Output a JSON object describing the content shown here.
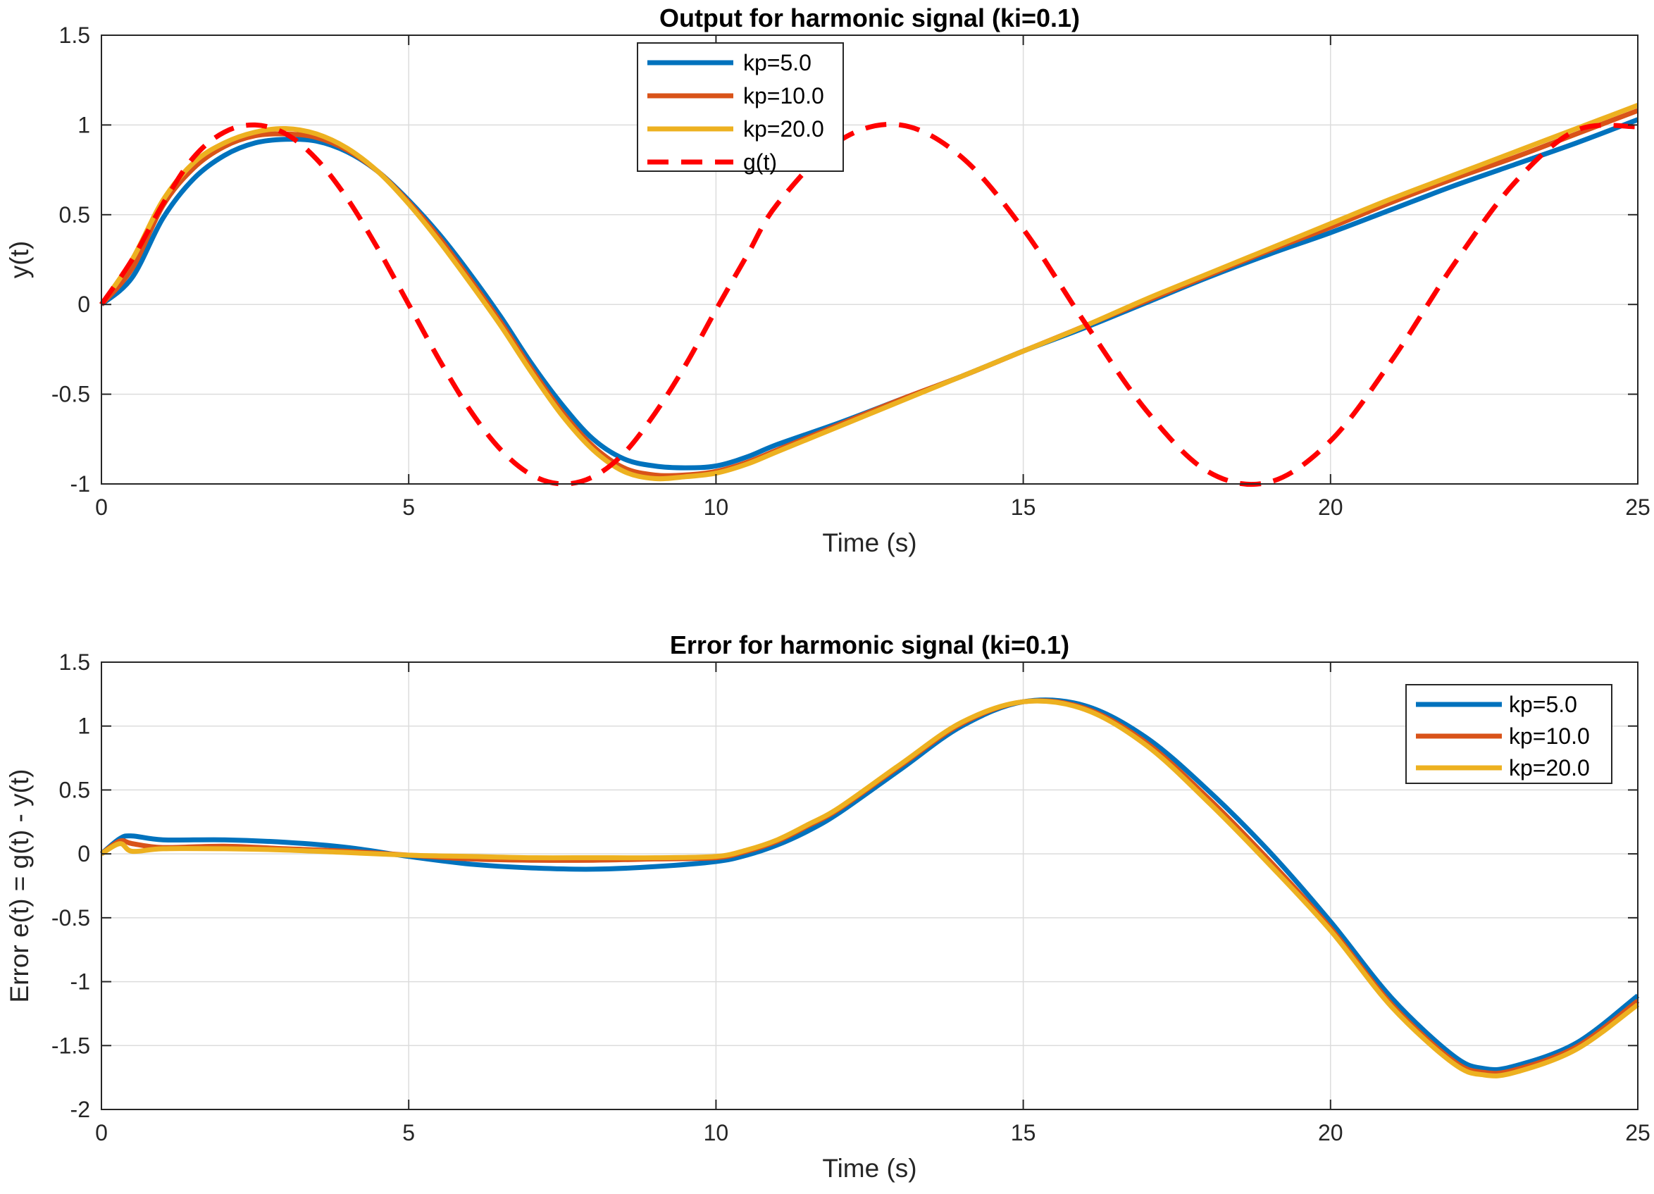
{
  "chart_data": [
    {
      "type": "line",
      "title": "Output for harmonic signal (ki=0.1)",
      "xlabel": "Time (s)",
      "ylabel": "y(t)",
      "xlim": [
        0,
        25
      ],
      "ylim": [
        -1,
        1.5
      ],
      "xticks": [
        0,
        5,
        10,
        15,
        20,
        25
      ],
      "yticks": [
        -1,
        -0.5,
        0,
        0.5,
        1,
        1.5
      ],
      "grid": true,
      "legend_position": "top-center",
      "x": [
        0,
        0.5,
        1,
        1.5,
        2,
        2.5,
        3,
        3.5,
        4,
        4.5,
        5,
        5.5,
        6,
        6.5,
        7,
        7.5,
        8,
        8.5,
        9,
        9.5,
        10,
        10.5,
        11,
        12,
        13,
        14,
        15,
        16,
        17,
        18,
        19,
        20,
        21,
        22,
        23,
        24,
        25
      ],
      "series": [
        {
          "name": "kp=5.0",
          "color": "#0072BD",
          "style": "solid",
          "values": [
            0,
            0.15,
            0.48,
            0.7,
            0.83,
            0.9,
            0.92,
            0.91,
            0.85,
            0.74,
            0.58,
            0.39,
            0.17,
            -0.07,
            -0.33,
            -0.56,
            -0.75,
            -0.86,
            -0.9,
            -0.91,
            -0.9,
            -0.85,
            -0.78,
            -0.66,
            -0.53,
            -0.4,
            -0.26,
            -0.13,
            0.01,
            0.15,
            0.28,
            0.4,
            0.53,
            0.66,
            0.78,
            0.9,
            1.03
          ]
        },
        {
          "name": "kp=10.0",
          "color": "#D95319",
          "style": "solid",
          "values": [
            0,
            0.2,
            0.55,
            0.76,
            0.88,
            0.94,
            0.95,
            0.93,
            0.86,
            0.74,
            0.57,
            0.37,
            0.14,
            -0.1,
            -0.36,
            -0.6,
            -0.79,
            -0.91,
            -0.95,
            -0.95,
            -0.93,
            -0.88,
            -0.81,
            -0.67,
            -0.53,
            -0.4,
            -0.26,
            -0.12,
            0.02,
            0.16,
            0.3,
            0.43,
            0.57,
            0.7,
            0.82,
            0.95,
            1.08
          ]
        },
        {
          "name": "kp=20.0",
          "color": "#EDB120",
          "style": "solid",
          "values": [
            0,
            0.25,
            0.58,
            0.79,
            0.9,
            0.96,
            0.98,
            0.95,
            0.87,
            0.74,
            0.56,
            0.35,
            0.12,
            -0.12,
            -0.38,
            -0.62,
            -0.81,
            -0.93,
            -0.97,
            -0.96,
            -0.94,
            -0.89,
            -0.82,
            -0.68,
            -0.54,
            -0.4,
            -0.26,
            -0.12,
            0.03,
            0.17,
            0.31,
            0.45,
            0.59,
            0.72,
            0.85,
            0.98,
            1.11
          ]
        },
        {
          "name": "g(t)",
          "color": "#FF0000",
          "style": "dashed",
          "values": [
            0,
            0.25,
            0.56,
            0.82,
            0.96,
            1.0,
            0.95,
            0.81,
            0.59,
            0.31,
            0.0,
            -0.31,
            -0.59,
            -0.81,
            -0.95,
            -1.0,
            -0.96,
            -0.83,
            -0.61,
            -0.34,
            -0.03,
            0.27,
            0.56,
            0.91,
            1.0,
            0.82,
            0.42,
            -0.1,
            -0.59,
            -0.93,
            -0.99,
            -0.76,
            -0.31,
            0.22,
            0.68,
            0.97,
            0.99
          ]
        }
      ]
    },
    {
      "type": "line",
      "title": "Error for harmonic signal (ki=0.1)",
      "xlabel": "Time (s)",
      "ylabel": "Error e(t) = g(t) - y(t)",
      "xlim": [
        0,
        25
      ],
      "ylim": [
        -2,
        1.5
      ],
      "xticks": [
        0,
        5,
        10,
        15,
        20,
        25
      ],
      "yticks": [
        -2,
        -1.5,
        -1,
        -0.5,
        0,
        0.5,
        1,
        1.5
      ],
      "grid": true,
      "legend_position": "top-right",
      "x": [
        0,
        0.3,
        0.5,
        1,
        2,
        3,
        4,
        5,
        6,
        7,
        8,
        9,
        10,
        10.5,
        11,
        11.5,
        12,
        13,
        14,
        15,
        16,
        17,
        18,
        19,
        20,
        21,
        22,
        22.5,
        23,
        24,
        25
      ],
      "series": [
        {
          "name": "kp=5.0",
          "color": "#0072BD",
          "style": "solid",
          "values": [
            0,
            0.12,
            0.14,
            0.11,
            0.11,
            0.09,
            0.05,
            -0.02,
            -0.08,
            -0.11,
            -0.12,
            -0.1,
            -0.06,
            -0.01,
            0.07,
            0.18,
            0.32,
            0.66,
            1.0,
            1.19,
            1.16,
            0.91,
            0.5,
            0.02,
            -0.53,
            -1.13,
            -1.58,
            -1.68,
            -1.66,
            -1.48,
            -1.11
          ]
        },
        {
          "name": "kp=10.0",
          "color": "#D95319",
          "style": "solid",
          "values": [
            0,
            0.1,
            0.08,
            0.05,
            0.06,
            0.04,
            0.02,
            -0.01,
            -0.04,
            -0.05,
            -0.05,
            -0.04,
            -0.03,
            0.02,
            0.1,
            0.22,
            0.35,
            0.69,
            1.02,
            1.19,
            1.14,
            0.87,
            0.44,
            -0.05,
            -0.58,
            -1.18,
            -1.62,
            -1.71,
            -1.69,
            -1.51,
            -1.15
          ]
        },
        {
          "name": "kp=20.0",
          "color": "#EDB120",
          "style": "solid",
          "values": [
            0,
            0.08,
            0.02,
            0.04,
            0.04,
            0.03,
            0.01,
            -0.01,
            -0.02,
            -0.03,
            -0.03,
            -0.03,
            -0.02,
            0.03,
            0.11,
            0.23,
            0.36,
            0.7,
            1.03,
            1.19,
            1.13,
            0.85,
            0.41,
            -0.08,
            -0.6,
            -1.2,
            -1.64,
            -1.73,
            -1.71,
            -1.53,
            -1.18
          ]
        }
      ]
    }
  ]
}
